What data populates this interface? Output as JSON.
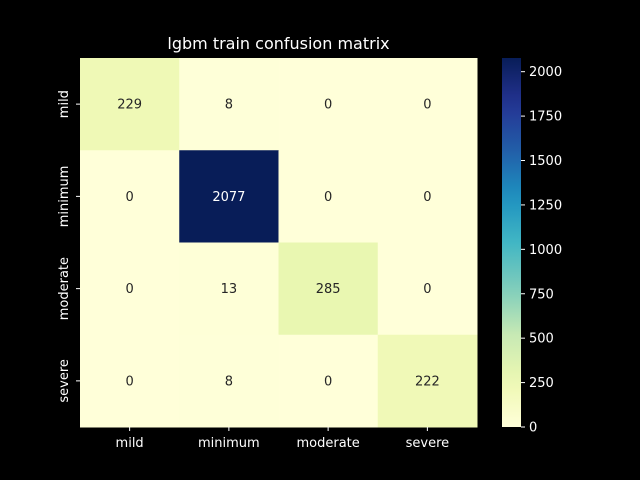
{
  "chart_data": {
    "type": "heatmap",
    "title": "lgbm train confusion matrix",
    "xlabel": "",
    "ylabel": "",
    "x_categories": [
      "mild",
      "minimum",
      "moderate",
      "severe"
    ],
    "y_categories": [
      "mild",
      "minimum",
      "moderate",
      "severe"
    ],
    "values": [
      [
        229,
        8,
        0,
        0
      ],
      [
        0,
        2077,
        0,
        0
      ],
      [
        0,
        13,
        285,
        0
      ],
      [
        0,
        8,
        0,
        222
      ]
    ],
    "colorbar": {
      "colormap": "YlGnBu",
      "range": [
        0,
        2077
      ],
      "ticks": [
        0,
        250,
        500,
        750,
        1000,
        1250,
        1500,
        1750,
        2000
      ]
    },
    "colors": {
      "background": "#000000",
      "text_on_light": "#262626",
      "text_on_dark": "#ffffff"
    }
  }
}
